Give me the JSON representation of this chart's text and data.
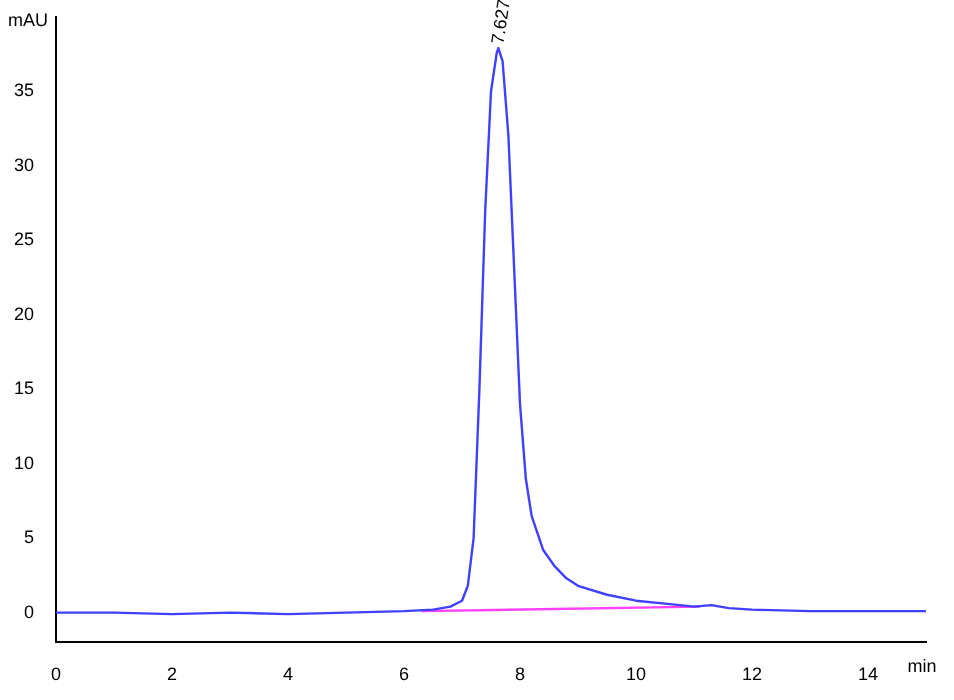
{
  "chart_data": {
    "type": "line",
    "xlabel": "min",
    "ylabel": "mAU",
    "xlim": [
      0,
      15
    ],
    "ylim": [
      -2,
      40
    ],
    "xticks": [
      0,
      2,
      4,
      6,
      8,
      10,
      12,
      14
    ],
    "yticks": [
      0,
      5,
      10,
      15,
      20,
      25,
      30,
      35
    ],
    "grid": false,
    "legend": false,
    "marker": "none",
    "line_style": "solid",
    "series": [
      {
        "color": "#4040ff",
        "x": [
          0,
          1,
          2,
          3,
          4,
          5,
          6,
          6.5,
          6.8,
          7.0,
          7.1,
          7.2,
          7.3,
          7.4,
          7.5,
          7.6,
          7.627,
          7.7,
          7.8,
          7.9,
          8.0,
          8.1,
          8.2,
          8.4,
          8.6,
          8.8,
          9.0,
          9.5,
          10,
          10.5,
          11,
          11.3,
          11.6,
          12,
          13,
          14,
          15
        ],
        "values": [
          0,
          0,
          -0.1,
          0,
          -0.1,
          0,
          0.1,
          0.2,
          0.4,
          0.8,
          1.8,
          5,
          15,
          27,
          35,
          37.6,
          37.9,
          37,
          32,
          23,
          14,
          9,
          6.5,
          4.2,
          3.1,
          2.3,
          1.8,
          1.2,
          0.8,
          0.6,
          0.4,
          0.5,
          0.3,
          0.2,
          0.1,
          0.1,
          0.1
        ]
      },
      {
        "color": "#ff40ff",
        "x": [
          6.3,
          11.1
        ],
        "values": [
          0.1,
          0.4
        ]
      }
    ],
    "annotations": [
      {
        "text": "7.627",
        "x": 7.627,
        "y": 37.9
      }
    ]
  }
}
